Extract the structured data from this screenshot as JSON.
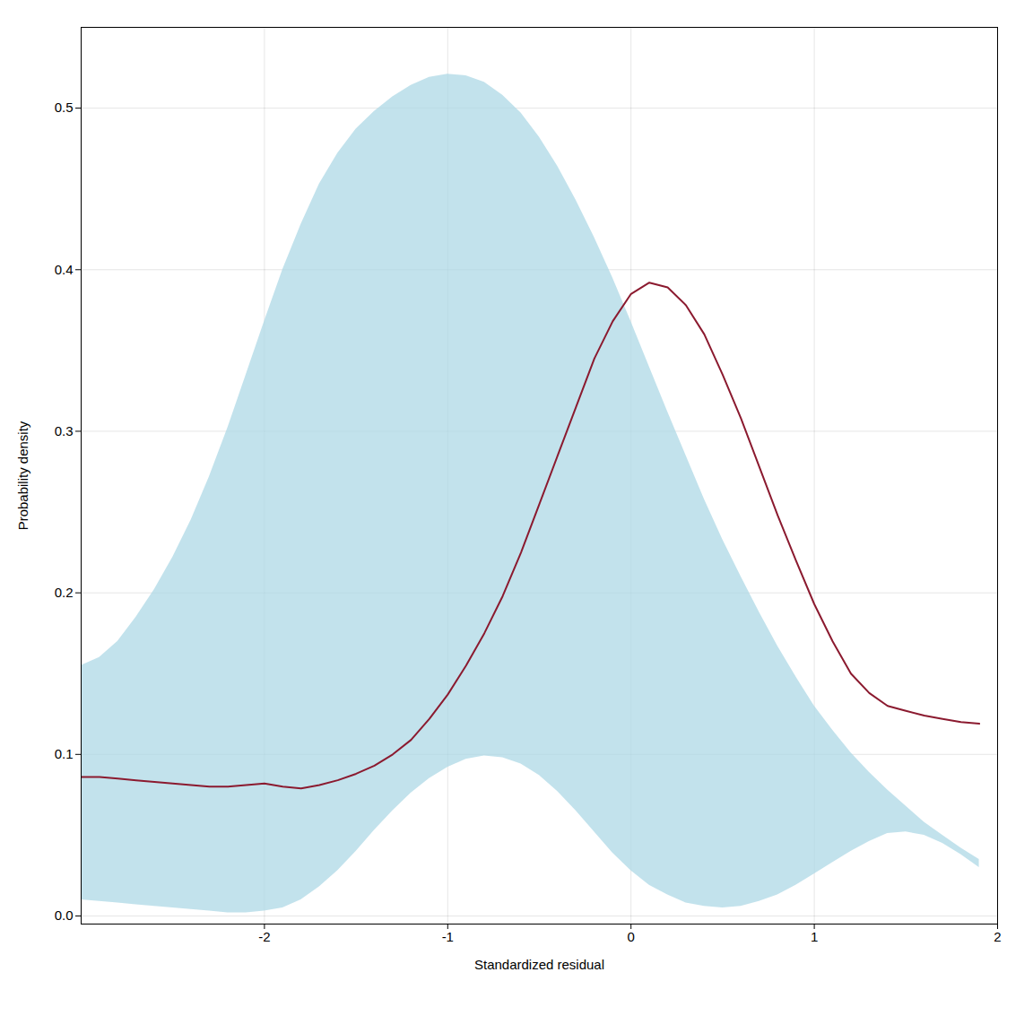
{
  "chart_data": {
    "type": "line",
    "xlabel": "Standardized residual",
    "ylabel": "Probability density",
    "x": [
      -3.0,
      -2.9,
      -2.8,
      -2.7,
      -2.6,
      -2.5,
      -2.4,
      -2.3,
      -2.2,
      -2.1,
      -2.0,
      -1.9,
      -1.8,
      -1.7,
      -1.6,
      -1.5,
      -1.4,
      -1.3,
      -1.2,
      -1.1,
      -1.0,
      -0.9,
      -0.8,
      -0.7,
      -0.6,
      -0.5,
      -0.4,
      -0.3,
      -0.2,
      -0.1,
      0.0,
      0.1,
      0.2,
      0.3,
      0.4,
      0.5,
      0.6,
      0.7,
      0.8,
      0.9,
      1.0,
      1.1,
      1.2,
      1.3,
      1.4,
      1.5,
      1.6,
      1.7,
      1.8,
      1.9
    ],
    "series": [
      {
        "type": "area",
        "color": "#ADD8E6",
        "lower": [
          0.01,
          0.009,
          0.008,
          0.007,
          0.006,
          0.005,
          0.004,
          0.003,
          0.002,
          0.002,
          0.003,
          0.005,
          0.01,
          0.018,
          0.028,
          0.04,
          0.053,
          0.065,
          0.076,
          0.085,
          0.092,
          0.097,
          0.099,
          0.098,
          0.094,
          0.087,
          0.077,
          0.065,
          0.052,
          0.039,
          0.028,
          0.019,
          0.013,
          0.008,
          0.006,
          0.005,
          0.006,
          0.009,
          0.013,
          0.019,
          0.026,
          0.033,
          0.04,
          0.046,
          0.051,
          0.052,
          0.05,
          0.045,
          0.038,
          0.03
        ],
        "upper": [
          0.155,
          0.16,
          0.17,
          0.185,
          0.202,
          0.222,
          0.245,
          0.272,
          0.302,
          0.335,
          0.368,
          0.4,
          0.428,
          0.453,
          0.472,
          0.487,
          0.498,
          0.507,
          0.514,
          0.519,
          0.521,
          0.52,
          0.516,
          0.508,
          0.497,
          0.482,
          0.464,
          0.443,
          0.42,
          0.395,
          0.368,
          0.34,
          0.312,
          0.285,
          0.258,
          0.233,
          0.21,
          0.188,
          0.167,
          0.148,
          0.13,
          0.115,
          0.101,
          0.089,
          0.078,
          0.068,
          0.058,
          0.05,
          0.042,
          0.035
        ]
      },
      {
        "type": "line",
        "color": "#8B1A2F",
        "values": [
          0.086,
          0.086,
          0.085,
          0.084,
          0.083,
          0.082,
          0.081,
          0.08,
          0.08,
          0.081,
          0.082,
          0.08,
          0.079,
          0.081,
          0.084,
          0.088,
          0.093,
          0.1,
          0.109,
          0.122,
          0.137,
          0.155,
          0.175,
          0.198,
          0.225,
          0.255,
          0.285,
          0.315,
          0.345,
          0.368,
          0.385,
          0.392,
          0.389,
          0.378,
          0.36,
          0.335,
          0.308,
          0.278,
          0.248,
          0.22,
          0.193,
          0.17,
          0.15,
          0.138,
          0.13,
          0.127,
          0.124,
          0.122,
          0.12,
          0.119
        ]
      }
    ],
    "xlim": [
      -3.0,
      2.0
    ],
    "ylim": [
      -0.005,
      0.55
    ],
    "xticks": [
      -2,
      -1,
      0,
      1,
      2
    ],
    "yticks": [
      {
        "value": 0.0,
        "label": "0.0"
      },
      0.1,
      0.2,
      0.3,
      0.4,
      0.5
    ],
    "grid": true
  }
}
